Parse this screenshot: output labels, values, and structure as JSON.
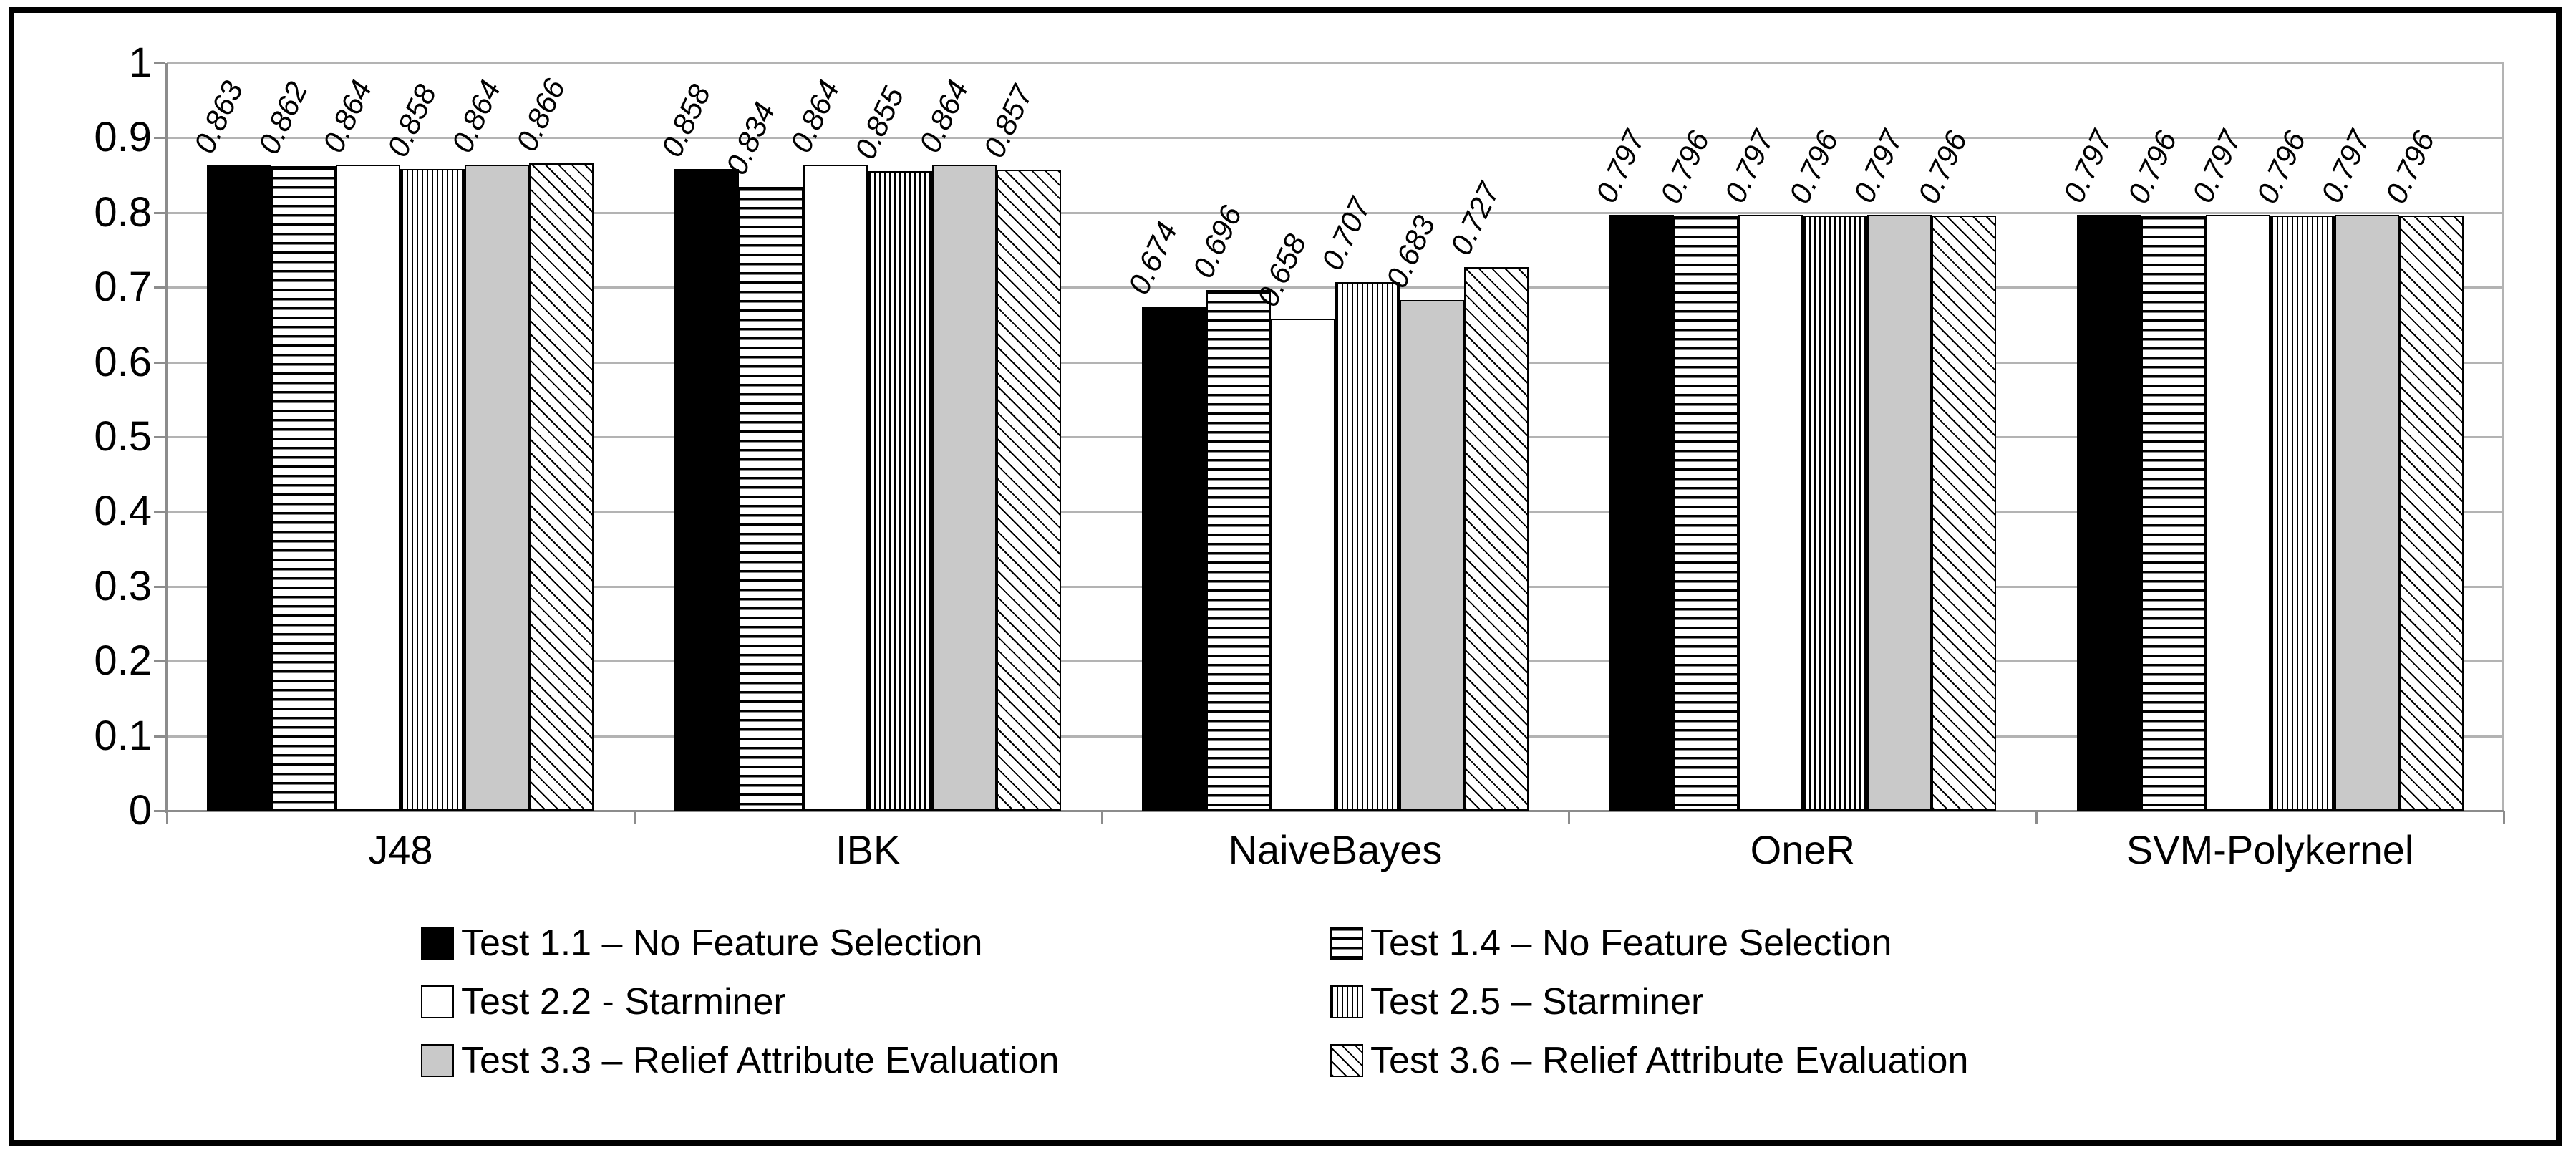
{
  "chart_data": {
    "type": "bar",
    "title": "",
    "xlabel": "",
    "ylabel": "",
    "categories": [
      "J48",
      "IBK",
      "NaiveBayes",
      "OneR",
      "SVM-Polykernel"
    ],
    "series": [
      {
        "name": "Test 1.1 – No Feature Selection",
        "pattern": "solid-black",
        "values": [
          0.863,
          0.858,
          0.674,
          0.797,
          0.797
        ]
      },
      {
        "name": "Test 1.4 – No Feature Selection",
        "pattern": "hlines",
        "values": [
          0.862,
          0.834,
          0.696,
          0.796,
          0.796
        ]
      },
      {
        "name": "Test 2.2 - Starminer",
        "pattern": "plain-white",
        "values": [
          0.864,
          0.864,
          0.658,
          0.797,
          0.797
        ]
      },
      {
        "name": "Test 2.5 – Starminer",
        "pattern": "vlines",
        "values": [
          0.858,
          0.855,
          0.707,
          0.796,
          0.796
        ]
      },
      {
        "name": "Test 3.3 – Relief Attribute Evaluation",
        "pattern": "solid-gray",
        "values": [
          0.864,
          0.864,
          0.683,
          0.797,
          0.797
        ]
      },
      {
        "name": "Test 3.6 – Relief Attribute Evaluation",
        "pattern": "dlines",
        "values": [
          0.866,
          0.857,
          0.727,
          0.796,
          0.796
        ]
      }
    ],
    "bar_value_labels": [
      [
        "0.863",
        "0.862",
        "0.864",
        "0.858",
        "0.864",
        "0.866"
      ],
      [
        "0.858",
        "0.834",
        "0.864",
        "0.855",
        "0.864",
        "0.857"
      ],
      [
        "0.674",
        "0.696",
        "0.658",
        "0.707",
        "0.683",
        "0.727"
      ],
      [
        "0.797",
        "0.796",
        "0.797",
        "0.796",
        "0.797",
        "0.796"
      ],
      [
        "0.797",
        "0.796",
        "0.797",
        "0.796",
        "0.797",
        "0.796"
      ]
    ],
    "ylim": [
      0,
      1
    ],
    "ytick_step": 0.1,
    "yticks": [
      "1",
      "0.9",
      "0.8",
      "0.7",
      "0.6",
      "0.5",
      "0.4",
      "0.3",
      "0.2",
      "0.1",
      "0"
    ],
    "grid": true,
    "legend_position": "bottom",
    "legend_columns": 2
  },
  "colors": {
    "background": "#ffffff",
    "frame_border": "#000000",
    "gridline": "#b3b3b3",
    "axis": "#8c8c8c",
    "bar_border": "#000000",
    "solid_black_fill": "#000000",
    "solid_gray_fill": "#c9c9c9",
    "text": "#000000"
  }
}
